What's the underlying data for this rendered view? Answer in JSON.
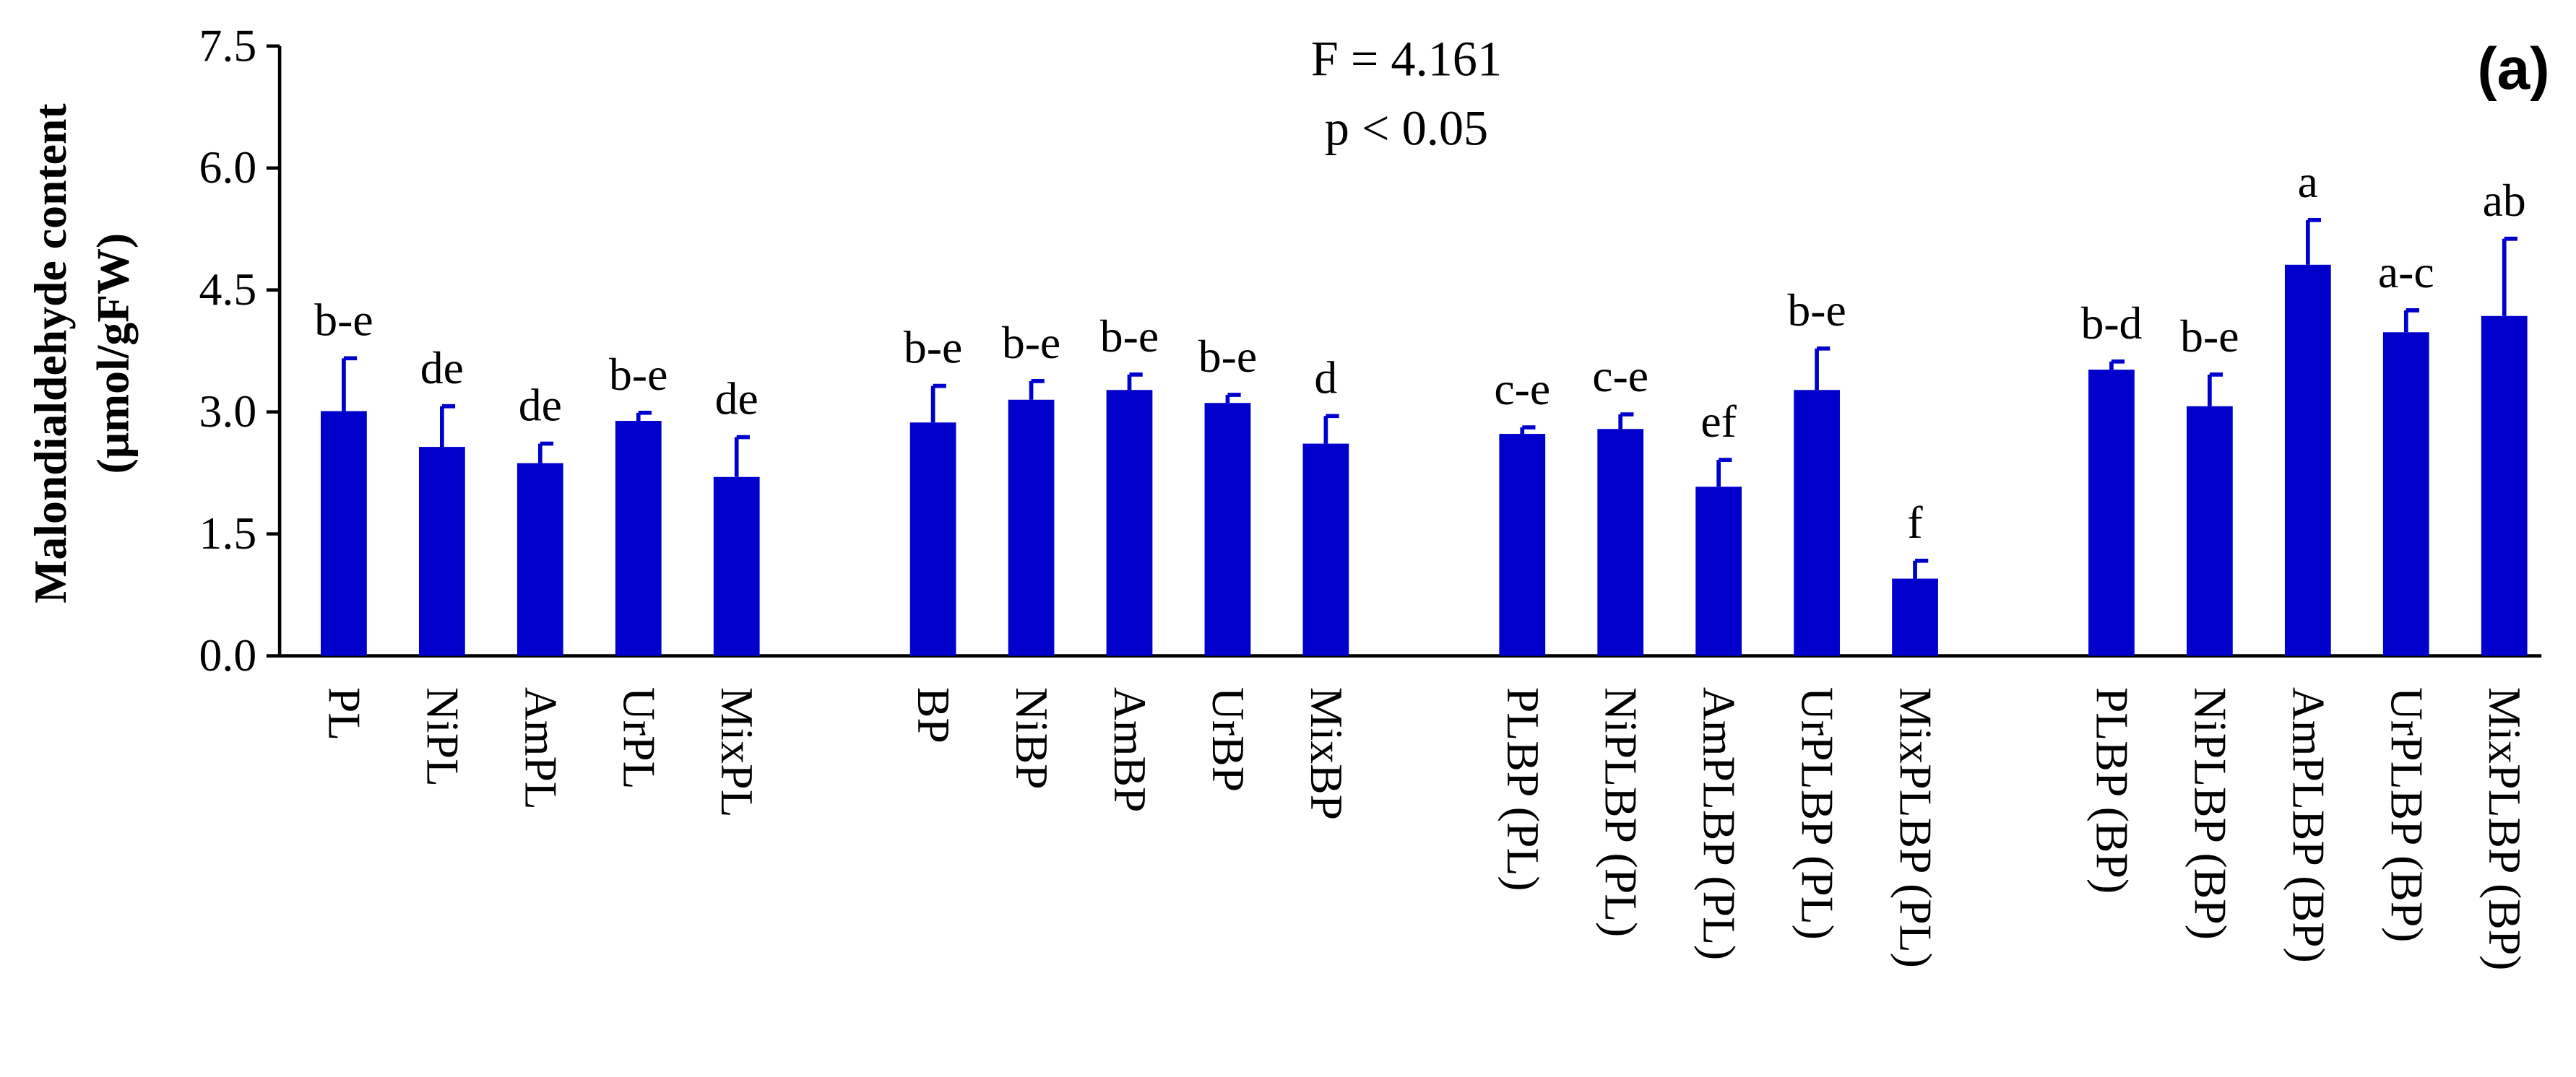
{
  "chart_data": {
    "type": "bar",
    "annotations": [
      "F = 4.161",
      "p < 0.05"
    ],
    "panel_label": "(a)",
    "y_label": [
      "Malondialdehyde content",
      "(μmol/gFW)"
    ],
    "categories": [
      "PL",
      "NiPL",
      "AmPL",
      "UrPL",
      "MixPL",
      "BP",
      "NiBP",
      "AmBP",
      "UrBP",
      "MixBP",
      "PLBP (PL)",
      "NiPLBP (PL)",
      "AmPLBP (PL)",
      "UrPLBP (PL)",
      "MixPLBP (PL)",
      "PLBP (BP)",
      "NiPLBP (BP)",
      "AmPLBP (BP)",
      "UrPLBP (BP)",
      "MixPLBP (BP)"
    ],
    "values": [
      3.01,
      2.57,
      2.37,
      2.89,
      2.2,
      2.87,
      3.15,
      3.27,
      3.11,
      2.61,
      2.73,
      2.79,
      2.08,
      3.27,
      0.95,
      3.52,
      3.07,
      4.81,
      3.98,
      4.18
    ],
    "errors": [
      0.65,
      0.5,
      0.24,
      0.1,
      0.49,
      0.45,
      0.23,
      0.19,
      0.1,
      0.34,
      0.08,
      0.18,
      0.33,
      0.51,
      0.22,
      0.1,
      0.39,
      0.55,
      0.27,
      0.95
    ],
    "letters": [
      "b-e",
      "de",
      "de",
      "b-e",
      "de",
      "b-e",
      "b-e",
      "b-e",
      "b-e",
      "d",
      "c-e",
      "c-e",
      "ef",
      "b-e",
      "f",
      "b-d",
      "b-e",
      "a",
      "a-c",
      "ab"
    ],
    "color": "#0000cc",
    "ylim": [
      0,
      7.5
    ],
    "yticks": [
      {
        "value": 0,
        "label": "0.0"
      },
      1.5,
      {
        "value": 3,
        "label": "3.0"
      },
      4.5,
      {
        "value": 6,
        "label": "6.0"
      },
      7.5
    ]
  }
}
